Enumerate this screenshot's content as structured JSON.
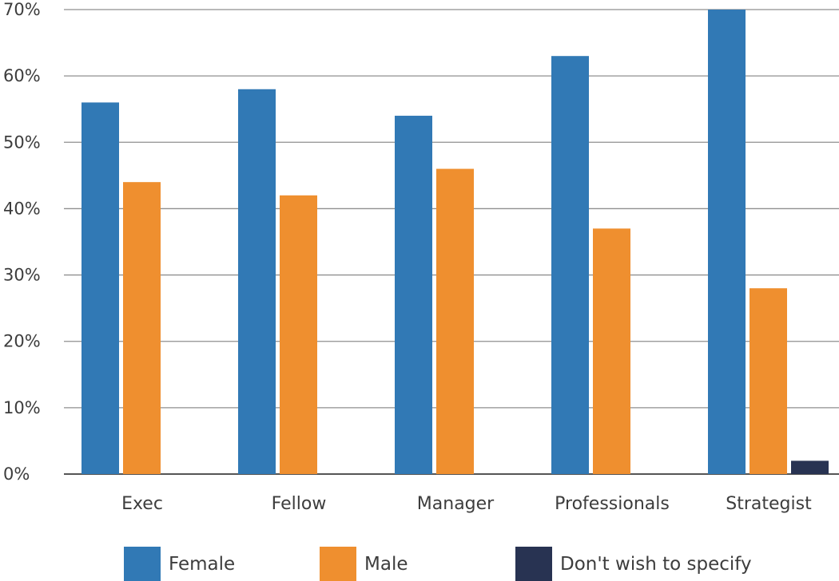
{
  "chart_data": {
    "type": "bar",
    "categories": [
      "Exec",
      "Fellow",
      "Manager",
      "Professionals",
      "Strategist"
    ],
    "series": [
      {
        "name": "Female",
        "color": "#3179b5",
        "values": [
          56,
          58,
          54,
          63,
          70
        ]
      },
      {
        "name": "Male",
        "color": "#ef8f2f",
        "values": [
          44,
          42,
          46,
          37,
          28
        ]
      },
      {
        "name": "Don't wish to specify",
        "color": "#283352",
        "values": [
          0,
          0,
          0,
          0,
          2
        ]
      }
    ],
    "y_ticks": [
      "0%",
      "10%",
      "20%",
      "30%",
      "40%",
      "50%",
      "60%",
      "70%"
    ],
    "ylim": [
      0,
      70
    ],
    "grid": true,
    "legend_position": "bottom",
    "title": "",
    "xlabel": "",
    "ylabel": ""
  }
}
